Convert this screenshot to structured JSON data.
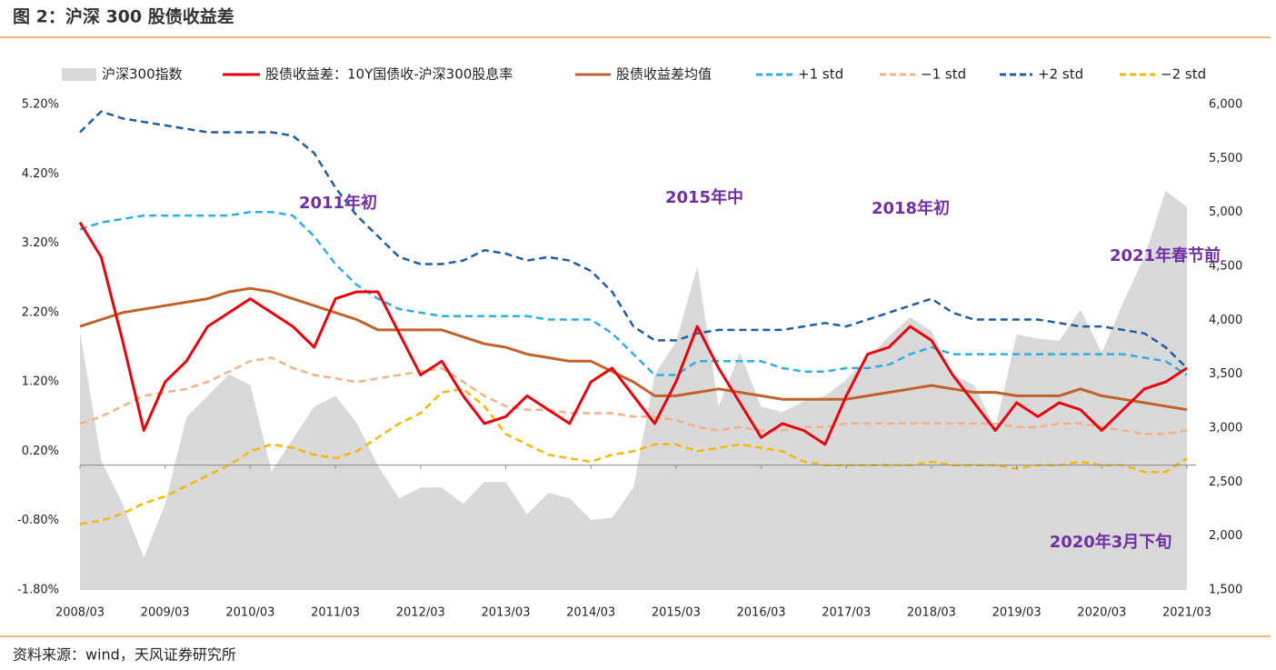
{
  "header": {
    "title": "图 2：沪深 300 股债收益差"
  },
  "footer": {
    "source": "资料来源：wind，天风证券研究所"
  },
  "chart_data": {
    "type": "line",
    "categories": [
      "2008/03",
      null,
      null,
      null,
      "2009/03",
      null,
      null,
      null,
      "2010/03",
      null,
      null,
      null,
      "2011/03",
      null,
      null,
      null,
      "2012/03",
      null,
      null,
      null,
      "2013/03",
      null,
      null,
      null,
      "2014/03",
      null,
      null,
      null,
      "2015/03",
      null,
      null,
      null,
      "2016/03",
      null,
      null,
      null,
      "2017/03",
      null,
      null,
      null,
      "2018/03",
      null,
      null,
      null,
      "2019/03",
      null,
      null,
      null,
      "2020/03",
      null,
      null,
      null,
      "2021/03"
    ],
    "ylim": [
      -1.8,
      5.2
    ],
    "yticks": [
      {
        "value": -1.8,
        "label": "-1.80%"
      },
      {
        "value": -0.8,
        "label": "-0.80%"
      },
      {
        "value": 0.2,
        "label": "0.20%"
      },
      {
        "value": 1.2,
        "label": "1.20%"
      },
      {
        "value": 2.2,
        "label": "2.20%"
      },
      {
        "value": 3.2,
        "label": "3.20%"
      },
      {
        "value": 4.2,
        "label": "4.20%"
      },
      {
        "value": 5.2,
        "label": "5.20%"
      }
    ],
    "y2lim": [
      1500,
      6000
    ],
    "y2ticks": [
      {
        "value": 1500,
        "label": "1,500"
      },
      {
        "value": 2000,
        "label": "2,000"
      },
      {
        "value": 2500,
        "label": "2,500"
      },
      {
        "value": 3000,
        "label": "3,000"
      },
      {
        "value": 3500,
        "label": "3,500"
      },
      {
        "value": 4000,
        "label": "4,000"
      },
      {
        "value": 4500,
        "label": "4,500"
      },
      {
        "value": 5000,
        "label": "5,000"
      },
      {
        "value": 5500,
        "label": "5,500"
      },
      {
        "value": 6000,
        "label": "6,000"
      }
    ],
    "grid": false,
    "legend": "top",
    "series": [
      {
        "name": "沪深300指数",
        "type": "area",
        "axis": "y2",
        "color": "#d9d9d9",
        "values": [
          3900,
          2700,
          2300,
          1800,
          2300,
          3100,
          3300,
          3500,
          3400,
          2600,
          2900,
          3200,
          3300,
          3050,
          2650,
          2350,
          2450,
          2450,
          2300,
          2500,
          2500,
          2200,
          2400,
          2350,
          2150,
          2170,
          2450,
          3500,
          3800,
          4500,
          3200,
          3700,
          3200,
          3150,
          3250,
          3300,
          3450,
          3650,
          3850,
          4030,
          3900,
          3500,
          3400,
          3000,
          3870,
          3830,
          3810,
          4100,
          3700,
          4160,
          4590,
          5200,
          5050
        ]
      },
      {
        "name": "股债收益差：10Y国债收-沪深300股息率",
        "type": "line",
        "color": "#e8000b",
        "values": [
          3.5,
          3.0,
          1.8,
          0.5,
          1.2,
          1.5,
          2.0,
          2.2,
          2.4,
          2.2,
          2.0,
          1.7,
          2.4,
          2.5,
          2.5,
          1.9,
          1.3,
          1.5,
          1.0,
          0.6,
          0.7,
          1.0,
          0.8,
          0.6,
          1.2,
          1.4,
          1.0,
          0.6,
          1.2,
          2.0,
          1.4,
          0.9,
          0.4,
          0.6,
          0.5,
          0.3,
          1.0,
          1.6,
          1.7,
          2.0,
          1.8,
          1.3,
          0.9,
          0.5,
          0.9,
          0.7,
          0.9,
          0.8,
          0.5,
          0.8,
          1.1,
          1.2,
          1.4
        ]
      },
      {
        "name": "股债收益差均值",
        "type": "line",
        "color": "#c0622a",
        "values": [
          2.0,
          2.1,
          2.2,
          2.25,
          2.3,
          2.35,
          2.4,
          2.5,
          2.55,
          2.5,
          2.4,
          2.3,
          2.2,
          2.1,
          1.95,
          1.95,
          1.95,
          1.95,
          1.85,
          1.75,
          1.7,
          1.6,
          1.55,
          1.5,
          1.5,
          1.35,
          1.2,
          1.0,
          1.0,
          1.05,
          1.1,
          1.05,
          1.0,
          0.95,
          0.95,
          0.95,
          0.95,
          1.0,
          1.05,
          1.1,
          1.15,
          1.1,
          1.05,
          1.05,
          1.0,
          1.0,
          1.0,
          1.1,
          1.0,
          0.95,
          0.9,
          0.85,
          0.8
        ]
      },
      {
        "name": "+1 std",
        "type": "line",
        "dashed": true,
        "color": "#2eaee6",
        "values": [
          3.4,
          3.5,
          3.55,
          3.6,
          3.6,
          3.6,
          3.6,
          3.6,
          3.65,
          3.65,
          3.6,
          3.3,
          2.9,
          2.6,
          2.4,
          2.25,
          2.2,
          2.15,
          2.15,
          2.15,
          2.15,
          2.15,
          2.1,
          2.1,
          2.1,
          1.9,
          1.6,
          1.3,
          1.3,
          1.5,
          1.5,
          1.5,
          1.5,
          1.4,
          1.35,
          1.35,
          1.4,
          1.4,
          1.45,
          1.6,
          1.7,
          1.6,
          1.6,
          1.6,
          1.6,
          1.6,
          1.6,
          1.6,
          1.6,
          1.6,
          1.55,
          1.5,
          1.3
        ]
      },
      {
        "name": "−1 std",
        "type": "line",
        "dashed": true,
        "color": "#f4b183",
        "values": [
          0.6,
          0.7,
          0.85,
          1.0,
          1.05,
          1.1,
          1.2,
          1.35,
          1.5,
          1.55,
          1.4,
          1.3,
          1.25,
          1.2,
          1.25,
          1.3,
          1.35,
          1.4,
          1.2,
          1.0,
          0.85,
          0.8,
          0.8,
          0.75,
          0.75,
          0.75,
          0.7,
          0.7,
          0.65,
          0.55,
          0.5,
          0.55,
          0.5,
          0.5,
          0.55,
          0.55,
          0.6,
          0.6,
          0.6,
          0.6,
          0.6,
          0.6,
          0.6,
          0.6,
          0.55,
          0.55,
          0.6,
          0.6,
          0.55,
          0.5,
          0.45,
          0.45,
          0.5
        ]
      },
      {
        "name": "+2 std",
        "type": "line",
        "dashed": true,
        "color": "#1f5fa0",
        "values": [
          4.8,
          5.1,
          5.0,
          4.95,
          4.9,
          4.85,
          4.8,
          4.8,
          4.8,
          4.8,
          4.75,
          4.5,
          4.0,
          3.6,
          3.3,
          3.0,
          2.9,
          2.9,
          2.95,
          3.1,
          3.05,
          2.95,
          3.0,
          2.95,
          2.8,
          2.5,
          2.0,
          1.8,
          1.8,
          1.9,
          1.95,
          1.95,
          1.95,
          1.95,
          2.0,
          2.05,
          2.0,
          2.1,
          2.2,
          2.3,
          2.4,
          2.2,
          2.1,
          2.1,
          2.1,
          2.1,
          2.05,
          2.0,
          2.0,
          1.95,
          1.9,
          1.7,
          1.4
        ]
      },
      {
        "name": "−2 std",
        "type": "line",
        "dashed": true,
        "color": "#f5b800",
        "values": [
          -0.85,
          -0.8,
          -0.7,
          -0.55,
          -0.45,
          -0.3,
          -0.15,
          0.0,
          0.2,
          0.3,
          0.25,
          0.15,
          0.1,
          0.2,
          0.4,
          0.6,
          0.75,
          1.05,
          1.1,
          0.85,
          0.45,
          0.3,
          0.15,
          0.1,
          0.05,
          0.15,
          0.2,
          0.3,
          0.3,
          0.2,
          0.25,
          0.3,
          0.25,
          0.2,
          0.05,
          0.0,
          0.0,
          0.0,
          0.0,
          0.0,
          0.05,
          0.0,
          0.0,
          0.0,
          -0.05,
          0.0,
          0.0,
          0.05,
          0.0,
          0.0,
          -0.1,
          -0.1,
          0.1
        ]
      }
    ],
    "annotations": [
      "2011年初",
      "2015年中",
      "2018年初",
      "2021年春节前",
      "2020年3月下旬"
    ]
  }
}
